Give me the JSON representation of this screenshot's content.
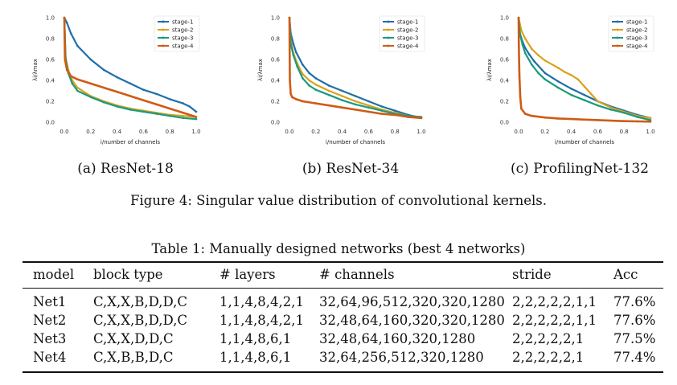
{
  "figure": {
    "caption": "Figure 4: Singular value distribution of convolutional kernels.",
    "subcaptions": [
      "(a) ResNet-18",
      "(b) ResNet-34",
      "(c) ProfilingNet-132"
    ]
  },
  "chart_data": [
    {
      "type": "line",
      "title": "",
      "xlabel": "i/number of channels",
      "ylabel": "λi/λmax",
      "xlim": [
        0,
        1
      ],
      "ylim": [
        0,
        1
      ],
      "xticks": [
        "0.0",
        "0.2",
        "0.4",
        "0.6",
        "0.8",
        "1.0"
      ],
      "yticks": [
        "0.0",
        "0.2",
        "0.4",
        "0.6",
        "0.8",
        "1.0"
      ],
      "legend": "top-right",
      "series": [
        {
          "name": "stage-1",
          "color": "#1f6fa8",
          "x": [
            0,
            0.02,
            0.05,
            0.1,
            0.2,
            0.3,
            0.4,
            0.5,
            0.6,
            0.7,
            0.8,
            0.9,
            0.95,
            1.0
          ],
          "y": [
            1.0,
            0.95,
            0.85,
            0.73,
            0.6,
            0.5,
            0.43,
            0.37,
            0.31,
            0.27,
            0.22,
            0.18,
            0.15,
            0.1
          ]
        },
        {
          "name": "stage-2",
          "color": "#d9a21b",
          "x": [
            0,
            0.01,
            0.03,
            0.06,
            0.1,
            0.2,
            0.3,
            0.4,
            0.5,
            0.6,
            0.7,
            0.8,
            0.9,
            1.0
          ],
          "y": [
            1.0,
            0.62,
            0.5,
            0.4,
            0.33,
            0.25,
            0.2,
            0.16,
            0.13,
            0.11,
            0.09,
            0.07,
            0.06,
            0.05
          ]
        },
        {
          "name": "stage-3",
          "color": "#1a9a7e",
          "x": [
            0,
            0.01,
            0.03,
            0.06,
            0.1,
            0.2,
            0.3,
            0.4,
            0.5,
            0.6,
            0.7,
            0.8,
            0.9,
            1.0
          ],
          "y": [
            1.0,
            0.6,
            0.47,
            0.37,
            0.3,
            0.24,
            0.19,
            0.15,
            0.12,
            0.1,
            0.08,
            0.06,
            0.04,
            0.03
          ]
        },
        {
          "name": "stage-4",
          "color": "#cf5b14",
          "x": [
            0,
            0.005,
            0.02,
            0.05,
            0.1,
            0.2,
            0.3,
            0.4,
            0.5,
            0.6,
            0.7,
            0.8,
            0.9,
            1.0
          ],
          "y": [
            1.0,
            0.6,
            0.5,
            0.44,
            0.41,
            0.37,
            0.33,
            0.29,
            0.25,
            0.21,
            0.17,
            0.13,
            0.09,
            0.05
          ]
        }
      ]
    },
    {
      "type": "line",
      "title": "",
      "xlabel": "i/number of channels",
      "ylabel": "λi/λmax",
      "xlim": [
        0,
        1
      ],
      "ylim": [
        0,
        1
      ],
      "xticks": [
        "0.0",
        "0.2",
        "0.4",
        "0.6",
        "0.8",
        "1.0"
      ],
      "yticks": [
        "0.0",
        "0.2",
        "0.4",
        "0.6",
        "0.8",
        "1.0"
      ],
      "legend": "top-right",
      "series": [
        {
          "name": "stage-1",
          "color": "#1f6fa8",
          "x": [
            0,
            0.01,
            0.03,
            0.05,
            0.1,
            0.15,
            0.2,
            0.3,
            0.4,
            0.5,
            0.6,
            0.7,
            0.8,
            0.9,
            1.0
          ],
          "y": [
            1.0,
            0.85,
            0.75,
            0.67,
            0.55,
            0.47,
            0.42,
            0.35,
            0.3,
            0.25,
            0.2,
            0.15,
            0.11,
            0.07,
            0.04
          ]
        },
        {
          "name": "stage-2",
          "color": "#d9a21b",
          "x": [
            0,
            0.01,
            0.03,
            0.06,
            0.1,
            0.15,
            0.2,
            0.3,
            0.4,
            0.5,
            0.6,
            0.7,
            0.8,
            0.9,
            1.0
          ],
          "y": [
            1.0,
            0.78,
            0.66,
            0.56,
            0.46,
            0.4,
            0.36,
            0.3,
            0.25,
            0.2,
            0.16,
            0.12,
            0.09,
            0.06,
            0.04
          ]
        },
        {
          "name": "stage-3",
          "color": "#1a9a7e",
          "x": [
            0,
            0.01,
            0.03,
            0.06,
            0.1,
            0.15,
            0.2,
            0.3,
            0.4,
            0.5,
            0.6,
            0.7,
            0.8,
            0.9,
            1.0
          ],
          "y": [
            1.0,
            0.75,
            0.64,
            0.53,
            0.42,
            0.35,
            0.31,
            0.26,
            0.21,
            0.17,
            0.14,
            0.11,
            0.08,
            0.06,
            0.05
          ]
        },
        {
          "name": "stage-4",
          "color": "#cf5b14",
          "x": [
            0,
            0.003,
            0.01,
            0.02,
            0.05,
            0.1,
            0.2,
            0.3,
            0.4,
            0.5,
            0.6,
            0.7,
            0.8,
            0.9,
            1.0
          ],
          "y": [
            1.0,
            0.4,
            0.27,
            0.24,
            0.22,
            0.2,
            0.18,
            0.16,
            0.14,
            0.12,
            0.1,
            0.08,
            0.07,
            0.05,
            0.04
          ]
        }
      ]
    },
    {
      "type": "line",
      "title": "",
      "xlabel": "i/number of channels",
      "ylabel": "λi/λmax",
      "xlim": [
        0,
        1
      ],
      "ylim": [
        0,
        1
      ],
      "xticks": [
        "0.0",
        "0.2",
        "0.4",
        "0.6",
        "0.8",
        "1.0"
      ],
      "yticks": [
        "0.0",
        "0.2",
        "0.4",
        "0.6",
        "0.8",
        "1.0"
      ],
      "legend": "top-right",
      "series": [
        {
          "name": "stage-1",
          "color": "#1f6fa8",
          "x": [
            0,
            0.01,
            0.03,
            0.05,
            0.08,
            0.12,
            0.2,
            0.3,
            0.4,
            0.5,
            0.6,
            0.7,
            0.8,
            0.9,
            1.0
          ],
          "y": [
            1.0,
            0.85,
            0.77,
            0.71,
            0.65,
            0.58,
            0.47,
            0.39,
            0.32,
            0.26,
            0.2,
            0.15,
            0.11,
            0.07,
            0.04
          ]
        },
        {
          "name": "stage-2",
          "color": "#d9a21b",
          "x": [
            0,
            0.02,
            0.05,
            0.1,
            0.15,
            0.2,
            0.3,
            0.35,
            0.4,
            0.45,
            0.5,
            0.55,
            0.6,
            0.7,
            0.8,
            0.9,
            1.0
          ],
          "y": [
            1.0,
            0.88,
            0.8,
            0.7,
            0.64,
            0.59,
            0.52,
            0.48,
            0.45,
            0.41,
            0.34,
            0.27,
            0.2,
            0.14,
            0.1,
            0.06,
            0.04
          ]
        },
        {
          "name": "stage-3",
          "color": "#1a9a7e",
          "x": [
            0,
            0.01,
            0.03,
            0.05,
            0.1,
            0.15,
            0.2,
            0.3,
            0.4,
            0.5,
            0.6,
            0.7,
            0.8,
            0.9,
            1.0
          ],
          "y": [
            1.0,
            0.85,
            0.74,
            0.66,
            0.55,
            0.47,
            0.41,
            0.33,
            0.26,
            0.21,
            0.16,
            0.12,
            0.09,
            0.05,
            0.02
          ]
        },
        {
          "name": "stage-4",
          "color": "#cf5b14",
          "x": [
            0,
            0.002,
            0.006,
            0.012,
            0.02,
            0.05,
            0.1,
            0.2,
            0.3,
            0.4,
            0.5,
            0.6,
            0.7,
            0.8,
            0.9,
            1.0
          ],
          "y": [
            1.0,
            0.72,
            0.45,
            0.25,
            0.13,
            0.08,
            0.06,
            0.045,
            0.035,
            0.03,
            0.025,
            0.02,
            0.015,
            0.01,
            0.008,
            0.005
          ]
        }
      ]
    }
  ],
  "table": {
    "title": "Table 1: Manually designed networks (best 4 networks)",
    "headers": [
      "model",
      "block type",
      "# layers",
      "# channels",
      "stride",
      "Acc"
    ],
    "rows": [
      [
        "Net1",
        "C,X,X,B,D,D,C",
        "1,1,4,8,4,2,1",
        "32,64,96,512,320,320,1280",
        "2,2,2,2,2,1,1",
        "77.6%"
      ],
      [
        "Net2",
        "C,X,X,B,D,D,C",
        "1,1,4,8,4,2,1",
        "32,48,64,160,320,320,1280",
        "2,2,2,2,2,1,1",
        "77.6%"
      ],
      [
        "Net3",
        "C,X,X,D,D,C",
        "1,1,4,8,6,1",
        "32,48,64,160,320,1280",
        "2,2,2,2,2,1",
        "77.5%"
      ],
      [
        "Net4",
        "C,X,B,B,D,C",
        "1,1,4,8,6,1",
        "32,64,256,512,320,1280",
        "2,2,2,2,2,1",
        "77.4%"
      ]
    ]
  }
}
